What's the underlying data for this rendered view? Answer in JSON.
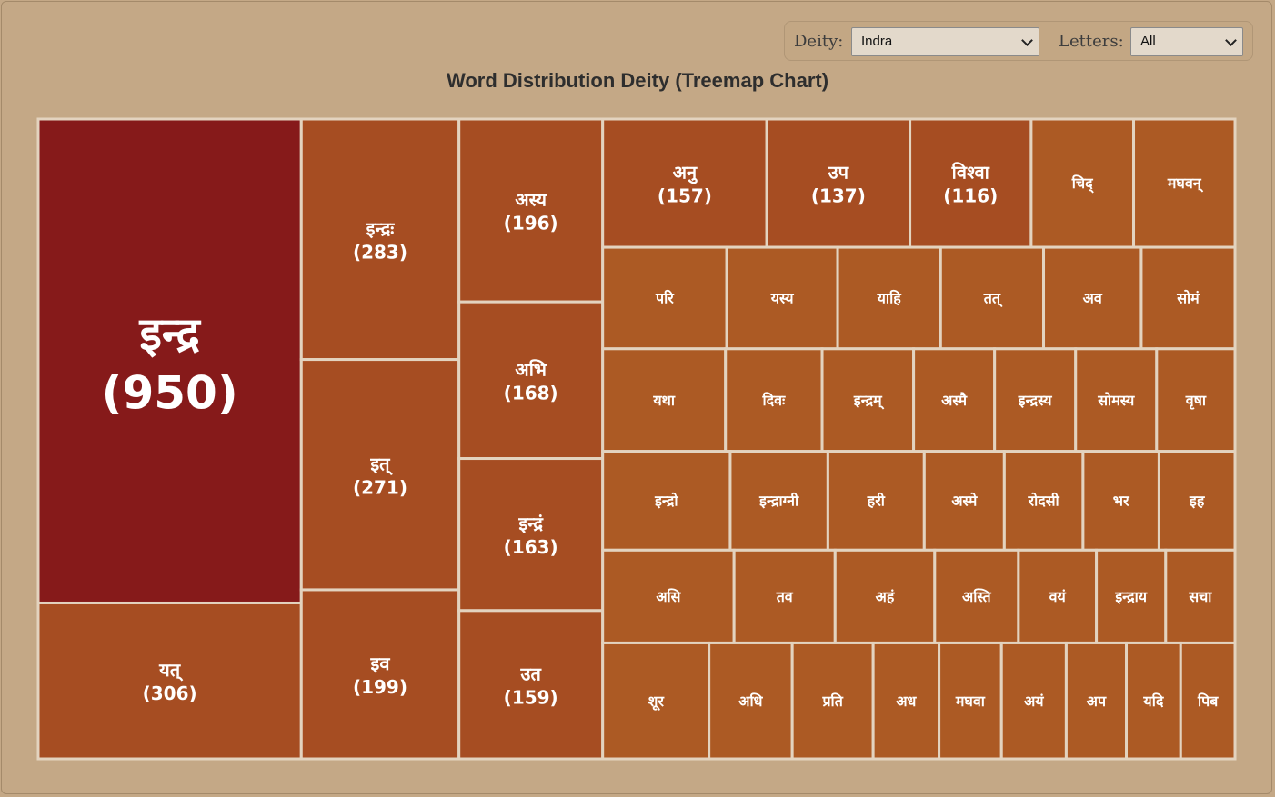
{
  "controls": {
    "deity_label": "Deity:",
    "deity_value": "Indra",
    "letters_label": "Letters:",
    "letters_value": "All"
  },
  "chart_data": {
    "type": "treemap",
    "title": "Word Distribution Deity (Treemap Chart)",
    "colors": {
      "max": "#861a1a",
      "high": "#a64d22",
      "low": "#ac5a24",
      "border": "#e3d3bf"
    },
    "items": [
      {
        "label": "इन्द्र",
        "value": 950
      },
      {
        "label": "यत्",
        "value": 306
      },
      {
        "label": "इन्द्रः",
        "value": 283
      },
      {
        "label": "इत्",
        "value": 271
      },
      {
        "label": "इव",
        "value": 199
      },
      {
        "label": "अस्य",
        "value": 196
      },
      {
        "label": "अभि",
        "value": 168
      },
      {
        "label": "इन्द्रं",
        "value": 163
      },
      {
        "label": "उत",
        "value": 159
      },
      {
        "label": "अनु",
        "value": 157
      },
      {
        "label": "उप",
        "value": 137
      },
      {
        "label": "विश्वा",
        "value": 116
      },
      {
        "label": "चिद्",
        "value": 98
      },
      {
        "label": "मघवन्",
        "value": 97
      },
      {
        "label": "परि",
        "value": 94
      },
      {
        "label": "यस्य",
        "value": 84
      },
      {
        "label": "याहि",
        "value": 78
      },
      {
        "label": "तत्",
        "value": 78
      },
      {
        "label": "अव",
        "value": 74
      },
      {
        "label": "सोमं",
        "value": 71
      },
      {
        "label": "यथा",
        "value": 94
      },
      {
        "label": "दिवः",
        "value": 74
      },
      {
        "label": "इन्द्रम्",
        "value": 70
      },
      {
        "label": "अस्मै",
        "value": 62
      },
      {
        "label": "इन्द्रस्य",
        "value": 62
      },
      {
        "label": "सोमस्य",
        "value": 62
      },
      {
        "label": "वृषा",
        "value": 60
      },
      {
        "label": "इन्द्रो",
        "value": 94
      },
      {
        "label": "इन्द्राग्नी",
        "value": 72
      },
      {
        "label": "हरी",
        "value": 71
      },
      {
        "label": "अस्मे",
        "value": 59
      },
      {
        "label": "रोदसी",
        "value": 58
      },
      {
        "label": "भर",
        "value": 56
      },
      {
        "label": "इह",
        "value": 56
      },
      {
        "label": "असि",
        "value": 91
      },
      {
        "label": "तव",
        "value": 70
      },
      {
        "label": "अहं",
        "value": 69
      },
      {
        "label": "अस्ति",
        "value": 58
      },
      {
        "label": "वयं",
        "value": 54
      },
      {
        "label": "इन्द्राय",
        "value": 48
      },
      {
        "label": "सचा",
        "value": 48
      },
      {
        "label": "शूर",
        "value": 92
      },
      {
        "label": "अधि",
        "value": 72
      },
      {
        "label": "प्रति",
        "value": 70
      },
      {
        "label": "अध",
        "value": 57
      },
      {
        "label": "मघवा",
        "value": 54
      },
      {
        "label": "अयं",
        "value": 56
      },
      {
        "label": "अप",
        "value": 52
      },
      {
        "label": "यदि",
        "value": 47
      },
      {
        "label": "पिब",
        "value": 47
      }
    ]
  }
}
